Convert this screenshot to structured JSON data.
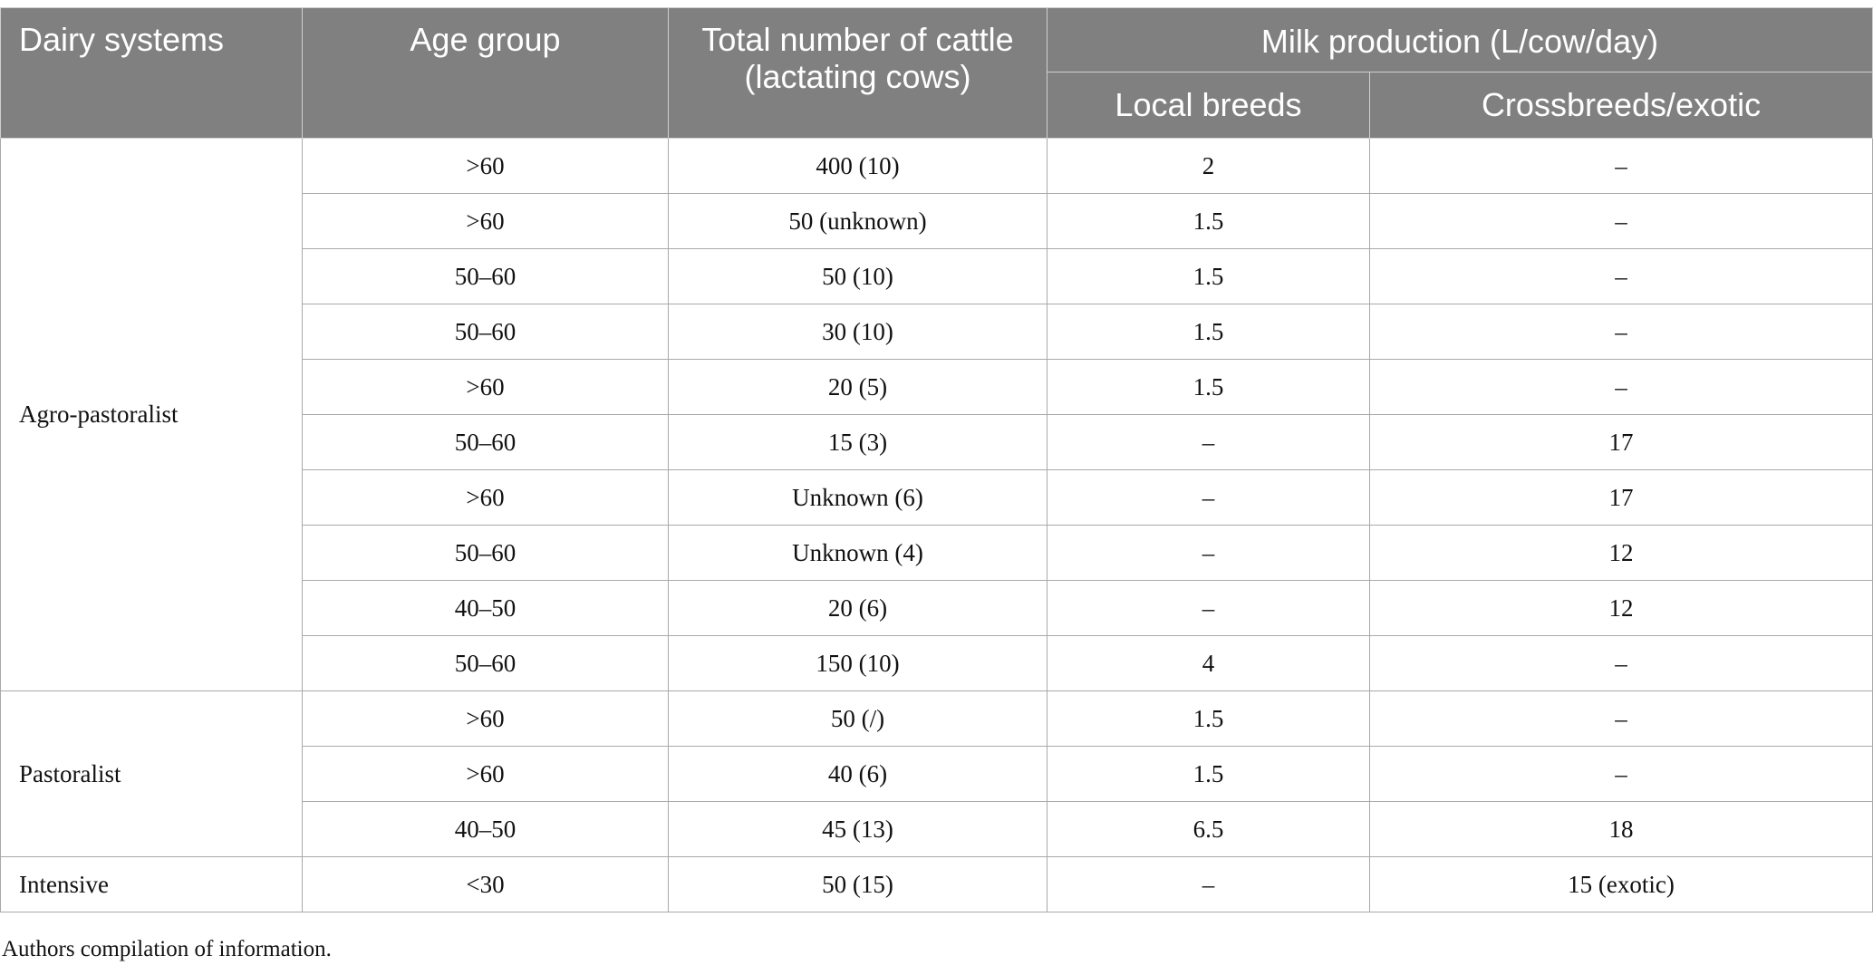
{
  "headers": {
    "dairy_systems": "Dairy systems",
    "age_group": "Age group",
    "total_cattle": "Total number of cattle (lactating cows)",
    "milk_production": "Milk production (L/cow/day)",
    "local_breeds": "Local breeds",
    "crossbreeds": "Crossbreeds/exotic"
  },
  "groups": [
    {
      "system": "Agro-pastoralist",
      "rows": [
        {
          "age": ">60",
          "cattle": "400 (10)",
          "local": "2",
          "cross": "–"
        },
        {
          "age": ">60",
          "cattle": "50 (unknown)",
          "local": "1.5",
          "cross": "–"
        },
        {
          "age": "50–60",
          "cattle": "50 (10)",
          "local": "1.5",
          "cross": "–"
        },
        {
          "age": "50–60",
          "cattle": "30 (10)",
          "local": "1.5",
          "cross": "–"
        },
        {
          "age": ">60",
          "cattle": "20 (5)",
          "local": "1.5",
          "cross": "–"
        },
        {
          "age": "50–60",
          "cattle": "15 (3)",
          "local": "–",
          "cross": "17"
        },
        {
          "age": ">60",
          "cattle": "Unknown (6)",
          "local": "–",
          "cross": "17"
        },
        {
          "age": "50–60",
          "cattle": "Unknown (4)",
          "local": "–",
          "cross": "12"
        },
        {
          "age": "40–50",
          "cattle": "20 (6)",
          "local": "–",
          "cross": "12"
        },
        {
          "age": "50–60",
          "cattle": "150 (10)",
          "local": "4",
          "cross": "–"
        }
      ]
    },
    {
      "system": "Pastoralist",
      "rows": [
        {
          "age": ">60",
          "cattle": "50 (/)",
          "local": "1.5",
          "cross": "–"
        },
        {
          "age": ">60",
          "cattle": "40 (6)",
          "local": "1.5",
          "cross": "–"
        },
        {
          "age": "40–50",
          "cattle": "45 (13)",
          "local": "6.5",
          "cross": "18"
        }
      ]
    },
    {
      "system": "Intensive",
      "rows": [
        {
          "age": "<30",
          "cattle": "50 (15)",
          "local": "–",
          "cross": "15 (exotic)"
        }
      ]
    }
  ],
  "footnote": "Authors compilation of information.",
  "colors": {
    "header_bg": "#808080",
    "header_text": "#ffffff",
    "border": "#a9a9a9"
  }
}
